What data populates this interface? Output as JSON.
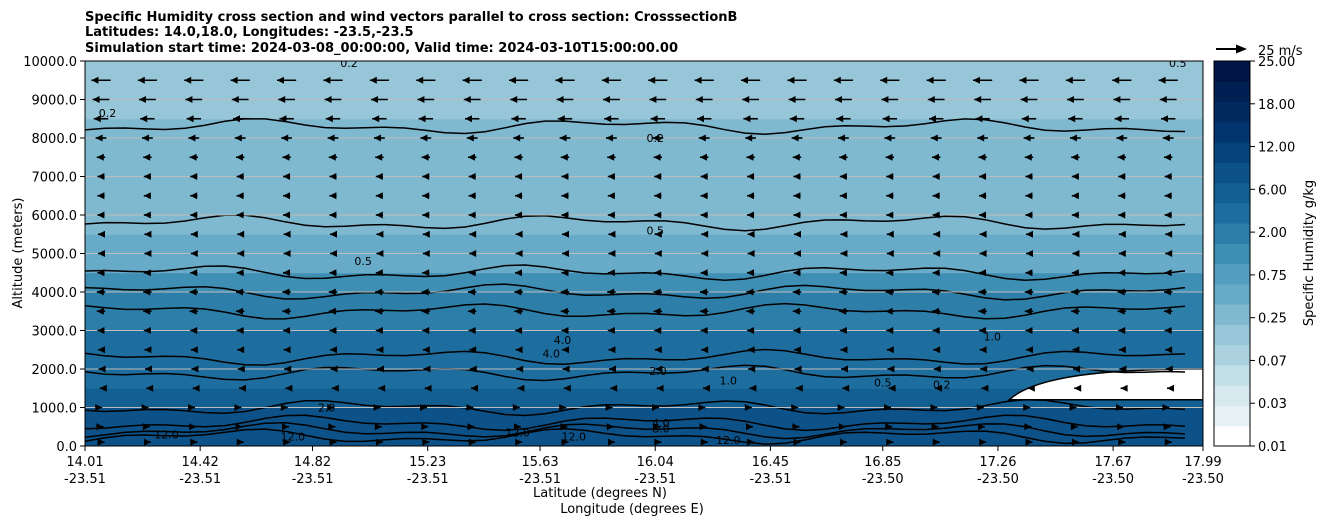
{
  "chart_data": {
    "type": "heatmap",
    "title_lines": [
      "Specific Humidity cross section and wind vectors parallel to cross section: CrosssectionB",
      "Latitudes: 14.0,18.0, Longitudes: -23.5,-23.5",
      "Simulation start time: 2024-03-08_00:00:00, Valid time: 2024-03-10T15:00:00.00"
    ],
    "xlabel_lines": [
      "Latitude (degrees N)",
      "Longitude (degrees E)"
    ],
    "ylabel": "Altitude (meters)",
    "x_ticks_lat": [
      "14.01",
      "14.42",
      "14.82",
      "15.23",
      "15.63",
      "16.04",
      "16.45",
      "16.85",
      "17.26",
      "17.67",
      "17.99"
    ],
    "x_ticks_lon": [
      "-23.51",
      "-23.51",
      "-23.51",
      "-23.51",
      "-23.51",
      "-23.51",
      "-23.51",
      "-23.50",
      "-23.50",
      "-23.50",
      "-23.50"
    ],
    "x_range": [
      14.01,
      17.99
    ],
    "y_ticks": [
      "0.0",
      "1000.0",
      "2000.0",
      "3000.0",
      "4000.0",
      "5000.0",
      "6000.0",
      "7000.0",
      "8000.0",
      "9000.0",
      "10000.0"
    ],
    "y_range": [
      0,
      10000
    ],
    "grid": "horizontal",
    "colorbar": {
      "label": "Specific Humidity g/kg",
      "tick_labels": [
        "0.01",
        "0.03",
        "0.07",
        "0.25",
        "0.75",
        "2.00",
        "6.00",
        "12.00",
        "18.00",
        "25.00"
      ],
      "levels": [
        0.01,
        0.02,
        0.03,
        0.05,
        0.07,
        0.1,
        0.25,
        0.5,
        0.75,
        1.0,
        2.0,
        4.0,
        6.0,
        8.0,
        12.0,
        15.0,
        18.0,
        21.0,
        25.0
      ],
      "colors": [
        "#ffffff",
        "#e6f1f5",
        "#d6e9ef",
        "#c3dfe8",
        "#add2df",
        "#97c6d8",
        "#7fb9d0",
        "#68abc8",
        "#539dbf",
        "#3f8fb5",
        "#2d7faa",
        "#1d6e9e",
        "#135f92",
        "#0c5187",
        "#06437b",
        "#02356d",
        "#012a60",
        "#001f53",
        "#001545"
      ]
    },
    "humidity_profile": [
      {
        "altitude": 0,
        "q": 12.0
      },
      {
        "altitude": 500,
        "q": 10.0
      },
      {
        "altitude": 1000,
        "q": 8.0
      },
      {
        "altitude": 1500,
        "q": 6.0
      },
      {
        "altitude": 2000,
        "q": 4.5
      },
      {
        "altitude": 3000,
        "q": 4.0
      },
      {
        "altitude": 3500,
        "q": 2.5
      },
      {
        "altitude": 4000,
        "q": 1.5
      },
      {
        "altitude": 4500,
        "q": 0.8
      },
      {
        "altitude": 5500,
        "q": 0.5
      },
      {
        "altitude": 7000,
        "q": 0.3
      },
      {
        "altitude": 8500,
        "q": 0.2
      },
      {
        "altitude": 10000,
        "q": 0.2
      }
    ],
    "dry_region": {
      "x_start": 17.3,
      "altitude_range": [
        1200,
        2000
      ],
      "q": 0.01
    },
    "contour_labels": [
      {
        "text": "0.2",
        "x": 16.04,
        "y": 8000
      },
      {
        "text": "0.5",
        "x": 16.04,
        "y": 5600
      },
      {
        "text": "0.5",
        "x": 15.0,
        "y": 4800
      },
      {
        "text": "4.0",
        "x": 15.67,
        "y": 2400
      },
      {
        "text": "4.0",
        "x": 15.71,
        "y": 2750
      },
      {
        "text": "2.0",
        "x": 16.05,
        "y": 1950
      },
      {
        "text": "1.0",
        "x": 16.3,
        "y": 1700
      },
      {
        "text": "0.5",
        "x": 16.85,
        "y": 1650
      },
      {
        "text": "0.2",
        "x": 17.06,
        "y": 1600
      },
      {
        "text": "1.0",
        "x": 17.24,
        "y": 2850
      },
      {
        "text": "2.0",
        "x": 14.87,
        "y": 1000
      },
      {
        "text": "4.0",
        "x": 16.06,
        "y": 600
      },
      {
        "text": "8.0",
        "x": 16.06,
        "y": 450
      },
      {
        "text": "12.0",
        "x": 14.3,
        "y": 300
      },
      {
        "text": "12.0",
        "x": 14.75,
        "y": 250
      },
      {
        "text": "12.0",
        "x": 15.55,
        "y": 350
      },
      {
        "text": "12.0",
        "x": 15.75,
        "y": 250
      },
      {
        "text": "12.0",
        "x": 16.3,
        "y": 150
      },
      {
        "text": "0.2",
        "x": 14.09,
        "y": 8650
      },
      {
        "text": "0.2",
        "x": 14.95,
        "y": 9950
      },
      {
        "text": "0.5",
        "x": 17.9,
        "y": 9950
      }
    ],
    "wind_reference": {
      "label": "25 m/s",
      "speed": 25
    },
    "wind_levels": [
      {
        "altitude": 9500,
        "u": -16
      },
      {
        "altitude": 9000,
        "u": -14
      },
      {
        "altitude": 8500,
        "u": -12
      },
      {
        "altitude": 8000,
        "u": -9
      },
      {
        "altitude": 7500,
        "u": -7
      },
      {
        "altitude": 7000,
        "u": -6
      },
      {
        "altitude": 6500,
        "u": -6
      },
      {
        "altitude": 6000,
        "u": -6
      },
      {
        "altitude": 5500,
        "u": -5
      },
      {
        "altitude": 5000,
        "u": -5
      },
      {
        "altitude": 4500,
        "u": -6
      },
      {
        "altitude": 4000,
        "u": -7
      },
      {
        "altitude": 3500,
        "u": -7
      },
      {
        "altitude": 3000,
        "u": -6
      },
      {
        "altitude": 2500,
        "u": -5
      },
      {
        "altitude": 2000,
        "u": -4
      },
      {
        "altitude": 1500,
        "u": -2
      },
      {
        "altitude": 1000,
        "u": 2
      },
      {
        "altitude": 500,
        "u": 4
      },
      {
        "altitude": 100,
        "u": 6
      }
    ]
  }
}
